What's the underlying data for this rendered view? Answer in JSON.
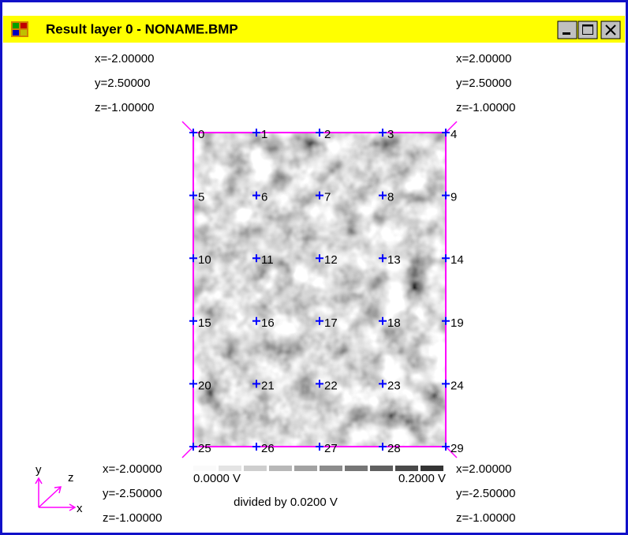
{
  "window": {
    "title": "Result layer 0 - NONAME.BMP"
  },
  "corners": {
    "top_left": [
      "x=-2.00000",
      "y=2.50000",
      "z=-1.00000"
    ],
    "top_right": [
      "x=2.00000",
      "y=2.50000",
      "z=-1.00000"
    ],
    "bottom_left": [
      "x=-2.00000",
      "y=-2.50000",
      "z=-1.00000"
    ],
    "bottom_right": [
      "x=2.00000",
      "y=-2.50000",
      "z=-1.00000"
    ]
  },
  "points": [
    "0",
    "1",
    "2",
    "3",
    "4",
    "5",
    "6",
    "7",
    "8",
    "9",
    "10",
    "11",
    "12",
    "13",
    "14",
    "15",
    "16",
    "17",
    "18",
    "19",
    "20",
    "21",
    "22",
    "23",
    "24",
    "25",
    "26",
    "27",
    "28",
    "29"
  ],
  "colorbar": {
    "min_label": "0.0000 V",
    "max_label": "0.2000 V",
    "note": "divided by 0.0200 V"
  },
  "axes": {
    "y": "y",
    "z": "z",
    "x": "x"
  }
}
